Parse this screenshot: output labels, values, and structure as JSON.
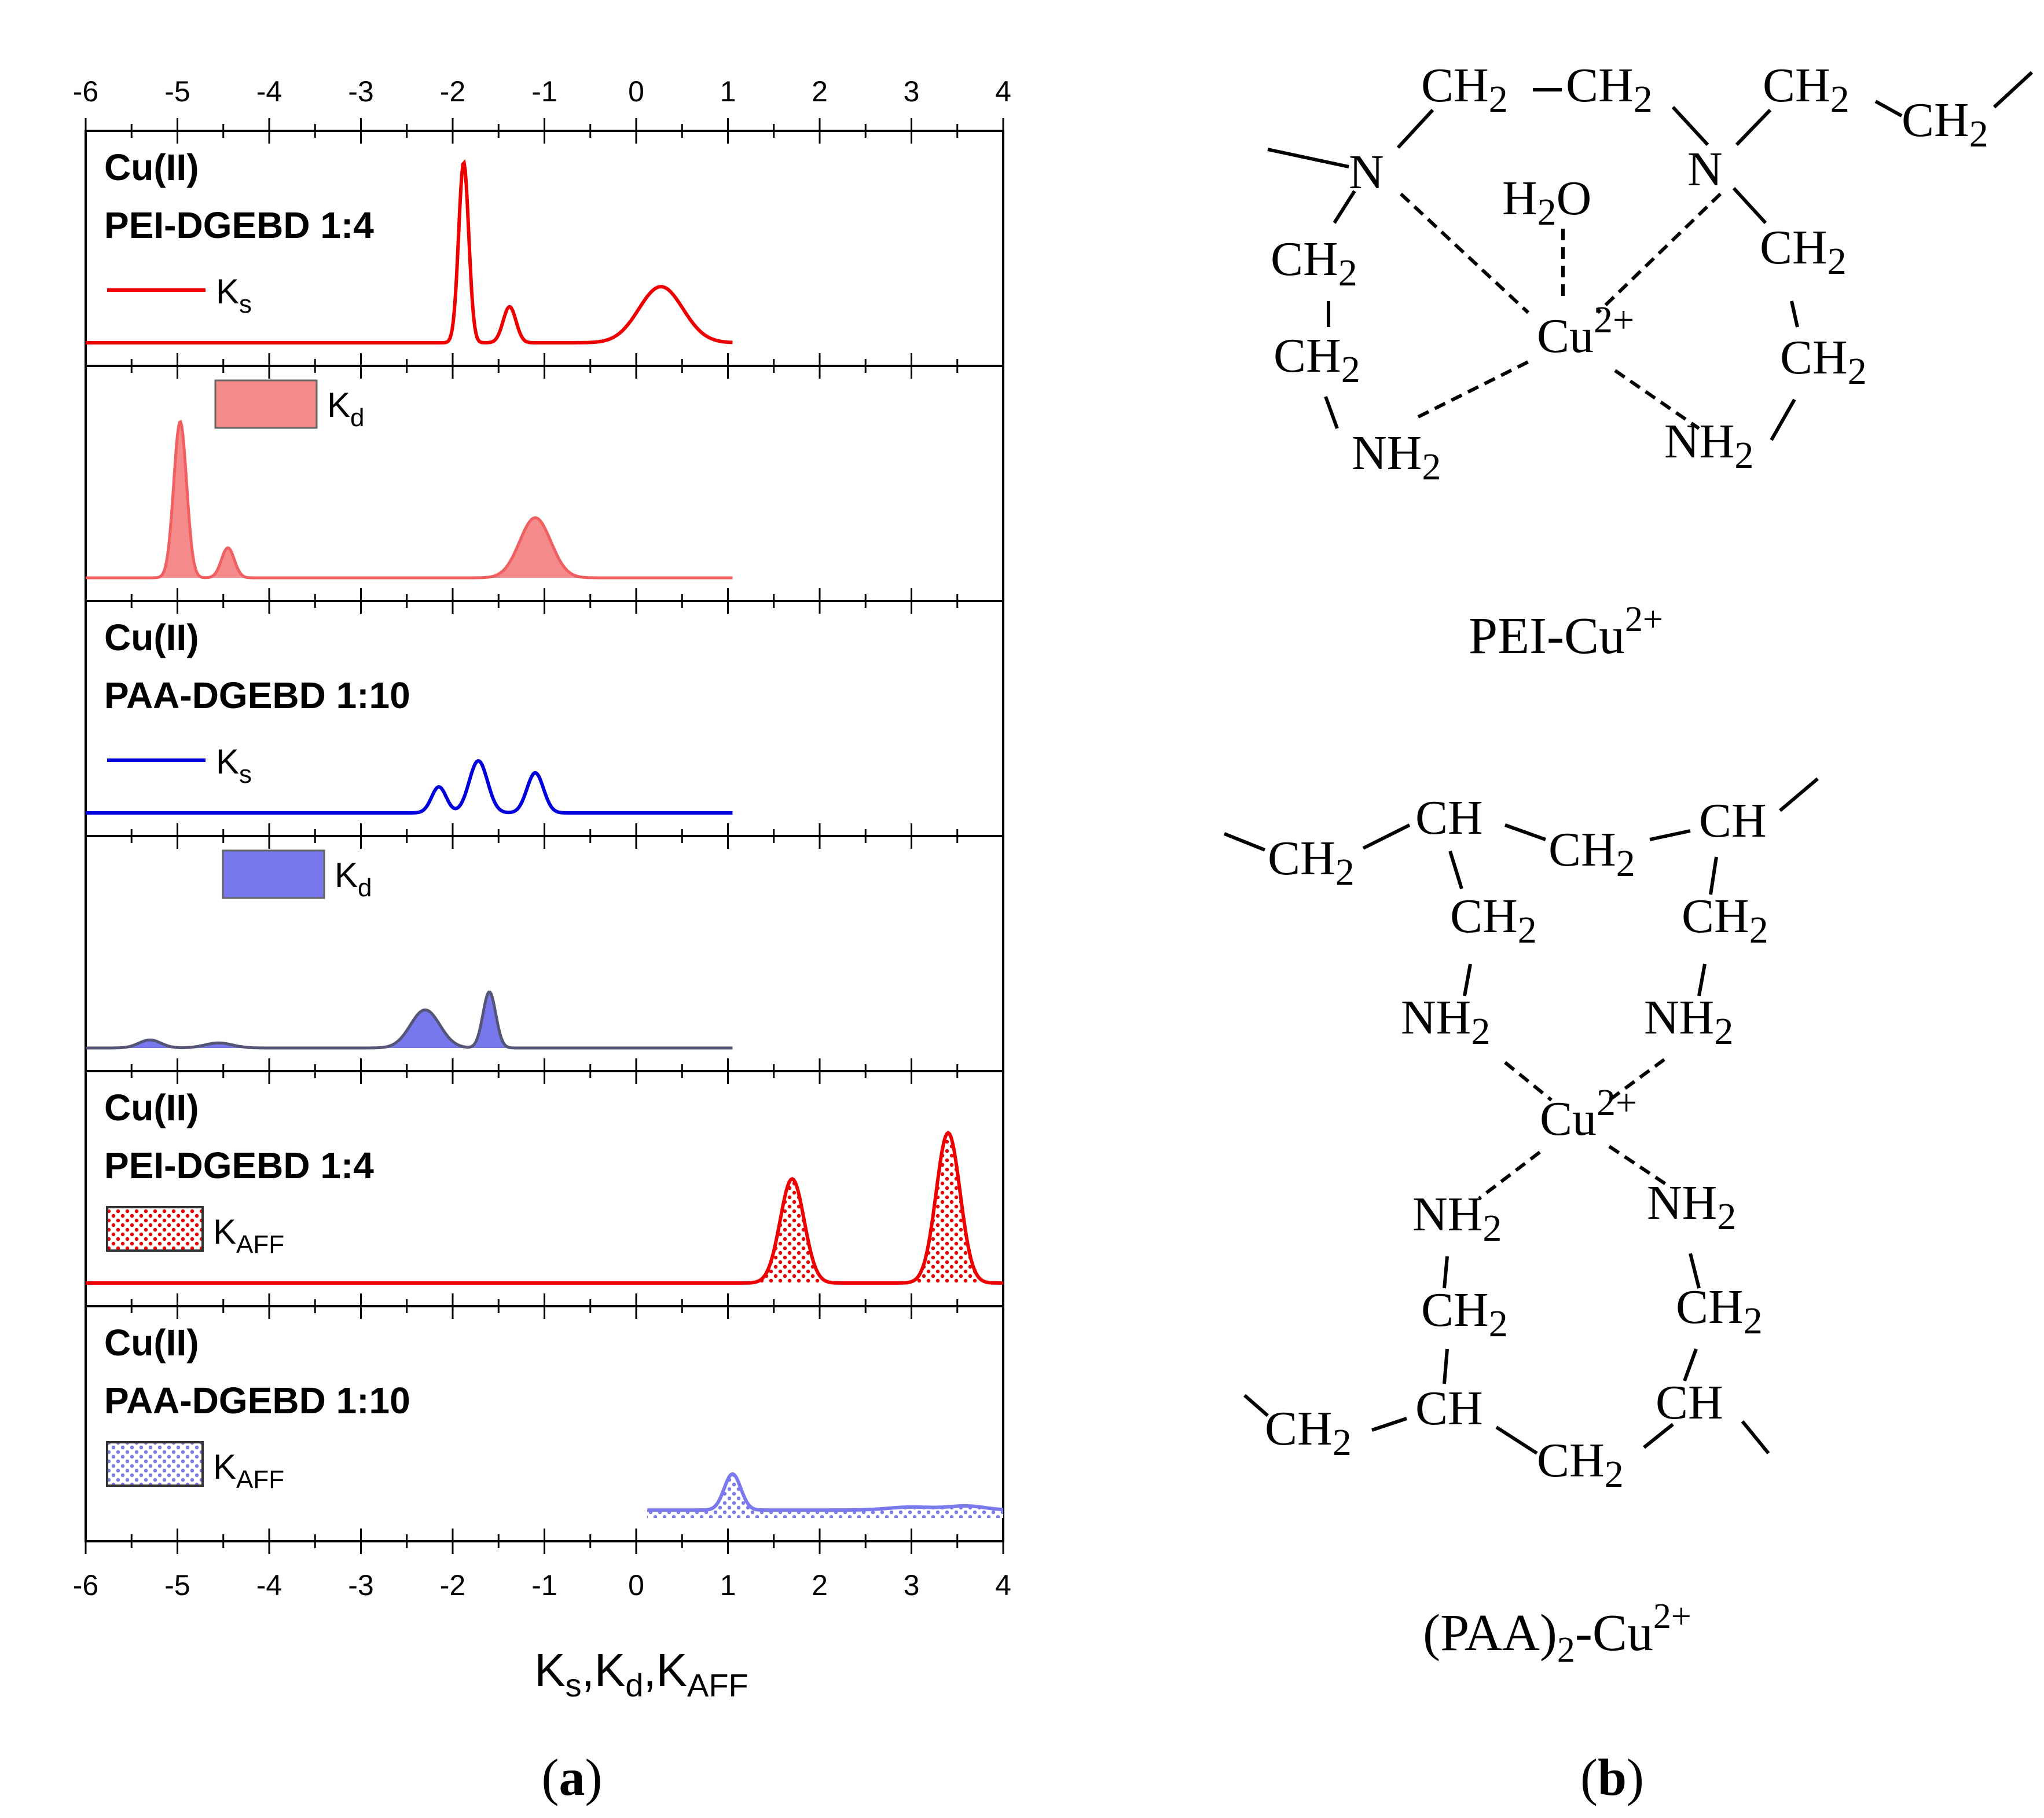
{
  "chart_data": {
    "type": "area",
    "xlim": [
      -6,
      4
    ],
    "xticks": [
      "-6",
      "-5",
      "-4",
      "-3",
      "-2",
      "-1",
      "0",
      "1",
      "2",
      "3",
      "4"
    ],
    "xlabel_parts": [
      "K",
      "s",
      ",K",
      "d",
      ",K",
      "AFF"
    ],
    "panel_letter": "a",
    "colors": {
      "red": "#ee0000",
      "redfill": "#f58a8a",
      "blue": "#0000dd",
      "bluefill": "#7777ee",
      "bluedot": "#7a7aee",
      "bluedge": "#555577"
    },
    "panels": [
      {
        "labels": [
          "Cu(II)",
          "PEI-DGEBD 1:4"
        ],
        "legend": "K",
        "legend_sub": "s",
        "style": "line",
        "color": "#ee0000",
        "baseline": 0,
        "ymax": 1,
        "peaks": [
          [
            -1.88,
            0.9,
            0.055
          ],
          [
            -1.38,
            0.18,
            0.07
          ],
          [
            0.27,
            0.28,
            0.24
          ]
        ],
        "range": [
          -6,
          1.05
        ]
      },
      {
        "labels": [],
        "legend": "K",
        "legend_sub": "d",
        "style": "fill",
        "color": "#f58a8a",
        "baseline": 0,
        "ymax": 1,
        "peaks": [
          [
            -4.97,
            0.78,
            0.07
          ],
          [
            -4.45,
            0.15,
            0.07
          ],
          [
            -1.1,
            0.3,
            0.17
          ]
        ],
        "range": [
          -6,
          1.05
        ]
      },
      {
        "labels": [
          "Cu(II)",
          "PAA-DGEBD 1:10"
        ],
        "legend": "K",
        "legend_sub": "s",
        "style": "line",
        "color": "#0000dd",
        "baseline": 0,
        "ymax": 1,
        "peaks": [
          [
            -2.15,
            0.13,
            0.08
          ],
          [
            -1.72,
            0.26,
            0.1
          ],
          [
            -1.1,
            0.2,
            0.09
          ]
        ],
        "range": [
          -6,
          1.05
        ]
      },
      {
        "labels": [],
        "legend": "K",
        "legend_sub": "d",
        "style": "fill",
        "color": "#7777ee",
        "baseline": 0,
        "ymax": 1,
        "peaks": [
          [
            -5.3,
            0.04,
            0.12
          ],
          [
            -4.55,
            0.025,
            0.15
          ],
          [
            -2.3,
            0.19,
            0.16
          ],
          [
            -1.6,
            0.28,
            0.07
          ]
        ],
        "range": [
          -6,
          1.05
        ]
      },
      {
        "labels": [
          "Cu(II)",
          "PEI-DGEBD 1:4"
        ],
        "legend": "K",
        "legend_sub": "AFF",
        "style": "dots",
        "color": "#ee0000",
        "baseline": 0,
        "ymax": 1,
        "peaks": [
          [
            1.7,
            0.52,
            0.13
          ],
          [
            3.4,
            0.75,
            0.13
          ]
        ],
        "range": [
          -6,
          4
        ]
      },
      {
        "labels": [
          "Cu(II)",
          "PAA-DGEBD 1:10"
        ],
        "legend": "K",
        "legend_sub": "AFF",
        "style": "dots",
        "color": "#7a7aee",
        "baseline": 0.04,
        "ymax": 1,
        "peaks": [
          [
            1.05,
            0.18,
            0.09
          ],
          [
            3.0,
            0.015,
            0.25
          ],
          [
            3.6,
            0.02,
            0.2
          ]
        ],
        "range": [
          0.12,
          4
        ]
      }
    ]
  },
  "structures": {
    "panel_letter": "b",
    "pei": {
      "caption_main": "PEI-Cu",
      "caption_sup": "2+",
      "ch2": "CH",
      "n": "N",
      "nh2": "NH",
      "h2o_h": "H",
      "h2o_o": "O",
      "sub2": "2",
      "cu": "Cu",
      "cu_charge": "2+"
    },
    "paa": {
      "caption_main": "(PAA)",
      "caption_sub": "2",
      "caption_tail": "-Cu",
      "caption_sup": "2+",
      "ch": "CH",
      "ch2": "CH",
      "nh2": "NH",
      "sub2": "2",
      "cu": "Cu",
      "cu_charge": "2+"
    }
  }
}
